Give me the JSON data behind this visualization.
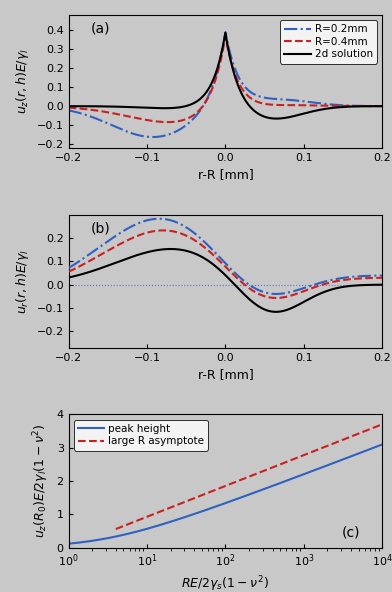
{
  "panel_a": {
    "label": "(a)",
    "xlabel": "r-R [mm]",
    "ylabel": "$u_z(r,h)E/\\gamma_l$",
    "xlim": [
      -0.2,
      0.2
    ],
    "ylim": [
      -0.22,
      0.48
    ],
    "yticks": [
      -0.2,
      -0.1,
      0.0,
      0.1,
      0.2,
      0.3,
      0.4
    ],
    "xticks": [
      -0.2,
      -0.1,
      0.0,
      0.1,
      0.2
    ]
  },
  "panel_b": {
    "label": "(b)",
    "xlabel": "r-R [mm]",
    "ylabel": "$u_r(r,h)E/\\gamma_l$",
    "xlim": [
      -0.2,
      0.2
    ],
    "ylim": [
      -0.27,
      0.3
    ],
    "yticks": [
      -0.2,
      -0.1,
      0.0,
      0.1,
      0.2
    ],
    "xticks": [
      -0.2,
      -0.1,
      0.0,
      0.1,
      0.2
    ]
  },
  "panel_c": {
    "label": "(c)",
    "xlabel": "$RE/2\\gamma_s(1-\\nu^2)$",
    "ylabel": "$u_z(R_0)E/2\\gamma_l(1-\\nu^2)$",
    "xlim": [
      1,
      10000.0
    ],
    "ylim": [
      0,
      4
    ],
    "yticks": [
      0,
      1,
      2,
      3,
      4
    ]
  },
  "colors": {
    "blue": "#3060C0",
    "red": "#CC2020",
    "black": "#000000",
    "dotted": "#4488FF"
  },
  "fig_bg": "#c8c8c8",
  "axes_bg": "#c8c8c8"
}
